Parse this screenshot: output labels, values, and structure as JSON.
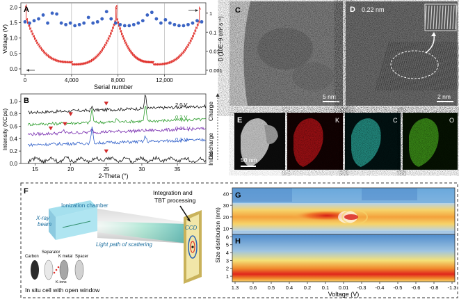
{
  "colors": {
    "voltage_line": "#e0302b",
    "diffusion_points": "#3b64c4",
    "xrd_2v": "#111111",
    "xrd_03v_charge": "#2e9e2e",
    "xrd_001v": "#7a2fb0",
    "xrd_03v_discharge": "#2f5fc9",
    "xrd_initial": "#111111",
    "marker": "#d12a2a"
  },
  "panels": {
    "A": {
      "label": "A",
      "ylabel_left": "Voltage (V)",
      "ylabel_right": "D (10E−9 cm² s⁻¹)",
      "xlabel": "Serial number",
      "x_ticks": [
        "0",
        "4,000",
        "8,000",
        "12,000"
      ],
      "y_ticks_left": [
        "0.0",
        "0.5",
        "1.0",
        "1.5",
        "2.0"
      ],
      "y_ticks_right": [
        "0.001",
        "0.01",
        "0.1",
        "1"
      ]
    },
    "B": {
      "label": "B",
      "ylabel": "Intensity (KCps)",
      "xlabel": "2-Theta (°)",
      "x_ticks": [
        "15",
        "20",
        "25",
        "30",
        "35"
      ],
      "y_ticks": [
        "0.0",
        "0.2",
        "0.4",
        "0.6",
        "0.8",
        "1.0"
      ],
      "curve_labels": [
        "2.0 V",
        "0.3 V",
        "0.01 V",
        "0.3 V"
      ],
      "side_labels": [
        "Initial",
        "Discharge",
        "Charge"
      ]
    },
    "C": {
      "label": "C",
      "scale": "5 nm"
    },
    "D": {
      "label": "D",
      "lattice": "0.22 nm",
      "scale": "2 nm"
    },
    "E": {
      "label": "E",
      "scale": "50 nm",
      "channels": [
        "K",
        "C",
        "O"
      ]
    },
    "F": {
      "label": "F",
      "labels": {
        "ionization": "Ionization chamber",
        "xray": "X-ray beam",
        "processing": "Integration and TBT processing",
        "ccd": "CCD",
        "light_path": "Light path of scattering",
        "carbon": "Carbon",
        "separator": "Separator",
        "kmetal": "K metal",
        "spacer": "Spacer",
        "kions": "K-ions",
        "cell": "In situ cell with open window"
      }
    },
    "G": {
      "label": "G",
      "y_ticks": [
        "40",
        "30",
        "20",
        "10"
      ]
    },
    "H": {
      "label": "H",
      "y_ticks": [
        "6",
        "5",
        "4",
        "3",
        "2",
        "1"
      ]
    },
    "GH": {
      "ylabel": "Size distribution (nm)",
      "xlabel": "Voltage (V)",
      "x_ticks": [
        "1.3",
        "0.6",
        "0.5",
        "0.4",
        "0.2",
        "0.1",
        "0.01",
        "-0.3",
        "-0.4",
        "-0.5",
        "-0.6",
        "-0.8",
        "-1.3"
      ]
    }
  }
}
